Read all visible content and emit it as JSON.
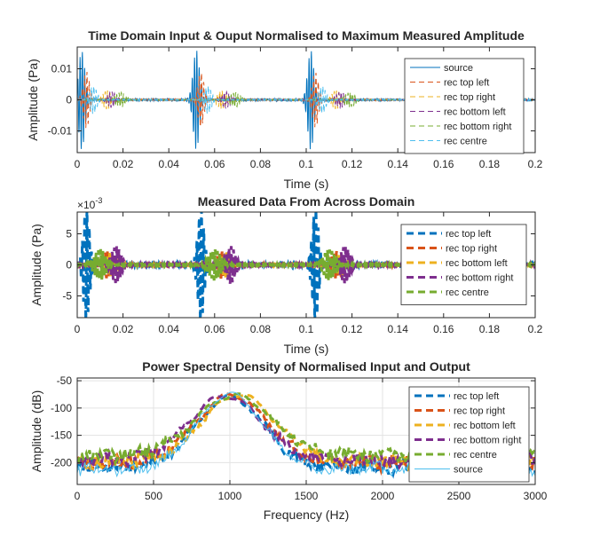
{
  "chart_data": [
    {
      "type": "line",
      "title": "Time Domain Input & Ouput Normalised to Maximum Measured Amplitude",
      "xlabel": "Time (s)",
      "ylabel": "Amplitude (Pa)",
      "xlim": [
        0,
        0.2
      ],
      "ylim": [
        -0.017,
        0.017
      ],
      "xticks": [
        0,
        0.02,
        0.04,
        0.06,
        0.08,
        0.1,
        0.12,
        0.14,
        0.16,
        0.18,
        0.2
      ],
      "yticks": [
        -0.01,
        0,
        0.01
      ],
      "grid": false,
      "legend_position": "top-right",
      "burst_starts": [
        0.0,
        0.05,
        0.1
      ],
      "series": [
        {
          "name": "source",
          "color": "#0072BD",
          "style": "solid",
          "width": 1,
          "peak": 0.016,
          "delay": 0.002,
          "fc": 1000,
          "tau": 0.0019
        },
        {
          "name": "rec top left",
          "color": "#D95319",
          "style": "dashed",
          "width": 1,
          "peak": 0.009,
          "delay": 0.004,
          "fc": 1000,
          "tau": 0.0019
        },
        {
          "name": "rec top right",
          "color": "#EDB120",
          "style": "dashed",
          "width": 1,
          "peak": 0.003,
          "delay": 0.013,
          "fc": 1000,
          "tau": 0.0025
        },
        {
          "name": "rec bottom left",
          "color": "#7E2F8E",
          "style": "dashed",
          "width": 1,
          "peak": 0.0026,
          "delay": 0.015,
          "fc": 1000,
          "tau": 0.0027
        },
        {
          "name": "rec bottom right",
          "color": "#77AC30",
          "style": "dashed",
          "width": 1,
          "peak": 0.0024,
          "delay": 0.019,
          "fc": 1000,
          "tau": 0.003
        },
        {
          "name": "rec centre",
          "color": "#4DBEEE",
          "style": "dashed",
          "width": 1,
          "peak": 0.0045,
          "delay": 0.007,
          "fc": 1000,
          "tau": 0.0021
        }
      ]
    },
    {
      "type": "line",
      "title": "Measured Data From Across Domain",
      "xlabel": "Time (s)",
      "ylabel": "Amplitude (Pa)",
      "multiplier": "×10",
      "multiplier_exp": "-3",
      "xlim": [
        0,
        0.2
      ],
      "ylim": [
        -8.5,
        8.5
      ],
      "xticks": [
        0,
        0.02,
        0.04,
        0.06,
        0.08,
        0.1,
        0.12,
        0.14,
        0.16,
        0.18,
        0.2
      ],
      "yticks": [
        -5,
        0,
        5
      ],
      "grid": false,
      "legend_position": "top-right",
      "burst_starts": [
        0.0,
        0.05,
        0.1
      ],
      "series": [
        {
          "name": "rec top left",
          "color": "#0072BD",
          "style": "dashed",
          "width": 3,
          "peak": 9.0,
          "delay": 0.004,
          "fc": 1000,
          "tau": 0.0019
        },
        {
          "name": "rec top right",
          "color": "#D95319",
          "style": "dashed",
          "width": 3,
          "peak": 2.2,
          "delay": 0.013,
          "fc": 1000,
          "tau": 0.0025
        },
        {
          "name": "rec bottom left",
          "color": "#EDB120",
          "style": "dashed",
          "width": 3,
          "peak": 2.0,
          "delay": 0.015,
          "fc": 1000,
          "tau": 0.0027
        },
        {
          "name": "rec bottom right",
          "color": "#7E2F8E",
          "style": "dashed",
          "width": 3,
          "peak": 3.0,
          "delay": 0.017,
          "fc": 1000,
          "tau": 0.0028
        },
        {
          "name": "rec centre",
          "color": "#77AC30",
          "style": "dashed",
          "width": 3,
          "peak": 2.5,
          "delay": 0.01,
          "fc": 1000,
          "tau": 0.0035
        }
      ]
    },
    {
      "type": "line",
      "title": "Power Spectral Density of Normalised Input and Output",
      "xlabel": "Frequency (Hz)",
      "ylabel": "Amplitude (dB)",
      "xlim": [
        0,
        3000
      ],
      "ylim": [
        -240,
        -45
      ],
      "xticks": [
        0,
        500,
        1000,
        1500,
        2000,
        2500,
        3000
      ],
      "yticks": [
        -50,
        -100,
        -150,
        -200
      ],
      "grid": true,
      "legend_position": "top-right",
      "series": [
        {
          "name": "rec top left",
          "color": "#0072BD",
          "style": "dashed",
          "width": 3,
          "peak_db": -80,
          "floor_db": -208,
          "center": 1000,
          "bw": 220
        },
        {
          "name": "rec top right",
          "color": "#D95319",
          "style": "dashed",
          "width": 3,
          "peak_db": -76,
          "floor_db": -200,
          "center": 1010,
          "bw": 230
        },
        {
          "name": "rec bottom left",
          "color": "#EDB120",
          "style": "dashed",
          "width": 3,
          "peak_db": -76,
          "floor_db": -198,
          "center": 1060,
          "bw": 240
        },
        {
          "name": "rec bottom right",
          "color": "#7E2F8E",
          "style": "dashed",
          "width": 3,
          "peak_db": -78,
          "floor_db": -196,
          "center": 970,
          "bw": 235
        },
        {
          "name": "rec centre",
          "color": "#77AC30",
          "style": "dashed",
          "width": 3,
          "peak_db": -77,
          "floor_db": -186,
          "center": 1030,
          "bw": 250
        },
        {
          "name": "source",
          "color": "#4DBEEE",
          "style": "solid",
          "width": 1,
          "peak_db": -74,
          "floor_db": -212,
          "center": 1000,
          "bw": 215
        }
      ]
    }
  ]
}
